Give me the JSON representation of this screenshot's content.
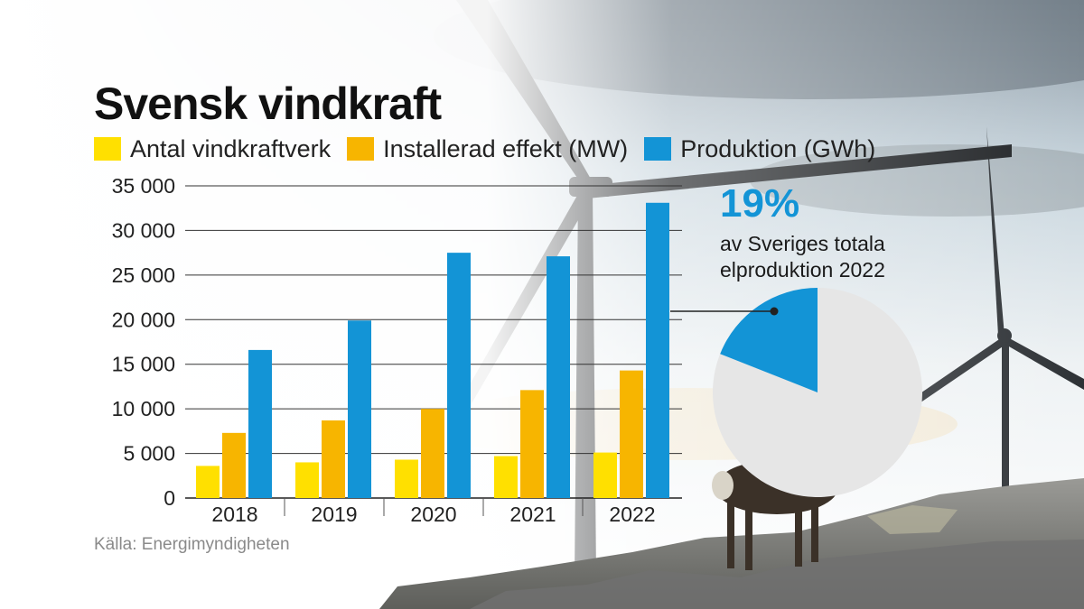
{
  "title": "Svensk vindkraft",
  "source": "Källa: Energimyndigheten",
  "colors": {
    "antal": "#ffe000",
    "effekt": "#f7b500",
    "produktion": "#1394d6",
    "pie_rest": "#e6e6e6"
  },
  "chart_data": [
    {
      "type": "bar",
      "categories": [
        "2018",
        "2019",
        "2020",
        "2021",
        "2022"
      ],
      "series": [
        {
          "name": "Antal vindkraftverk",
          "values": [
            3600,
            4000,
            4300,
            4700,
            5100
          ]
        },
        {
          "name": "Installerad effekt (MW)",
          "values": [
            7300,
            8700,
            10000,
            12100,
            14300
          ]
        },
        {
          "name": "Produktion (GWh)",
          "values": [
            16600,
            19900,
            27500,
            27100,
            33100
          ]
        }
      ],
      "yticks": [
        "0",
        "5 000",
        "10 000",
        "15 000",
        "20 000",
        "25 000",
        "30 000",
        "35 000"
      ],
      "ylim": [
        0,
        35000
      ],
      "grid": true,
      "legend": "top"
    },
    {
      "type": "pie",
      "value_label": "19%",
      "label": "av Sveriges totala elproduktion 2022",
      "slices": [
        {
          "value": 19,
          "color": "#1394d6"
        },
        {
          "value": 81,
          "color": "#e6e6e6"
        }
      ]
    }
  ]
}
